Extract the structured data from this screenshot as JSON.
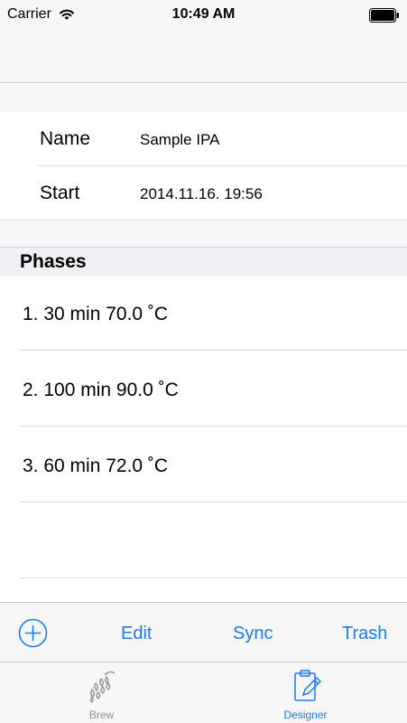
{
  "status_bar": {
    "carrier": "Carrier",
    "time": "10:49 AM"
  },
  "info": {
    "name_label": "Name",
    "name_value": "Sample IPA",
    "start_label": "Start",
    "start_value": "2014.11.16. 19:56"
  },
  "phases": {
    "header": "Phases",
    "items": [
      {
        "text": "1. 30 min 70.0 ˚C"
      },
      {
        "text": "2. 100 min 90.0 ˚C"
      },
      {
        "text": "3. 60 min 72.0 ˚C"
      }
    ]
  },
  "toolbar": {
    "edit_label": "Edit",
    "sync_label": "Sync",
    "trash_label": "Trash"
  },
  "tabs": [
    {
      "label": "Brew",
      "icon": "hop-icon",
      "selected": false
    },
    {
      "label": "Designer",
      "icon": "clipboard-pencil-icon",
      "selected": true
    }
  ],
  "colors": {
    "accent": "#1a7cf4",
    "inactive": "#929292"
  }
}
